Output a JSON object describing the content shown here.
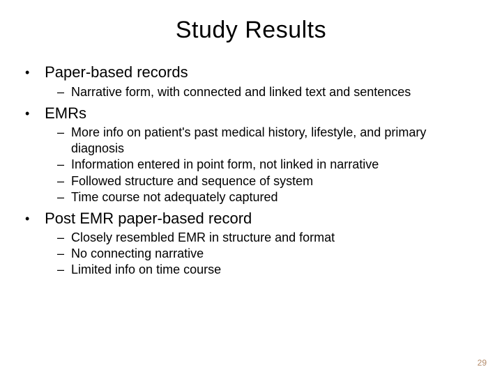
{
  "title": "Study Results",
  "pagenum": "29",
  "sections": [
    {
      "heading": "Paper-based records",
      "items": [
        "Narrative form, with connected and linked text and sentences"
      ]
    },
    {
      "heading": "EMRs",
      "items": [
        "More info on patient's past medical history, lifestyle, and primary diagnosis",
        "Information entered in point form, not linked in narrative",
        "Followed structure and sequence of system",
        "Time course not adequately captured"
      ]
    },
    {
      "heading": "Post EMR paper-based record",
      "items": [
        "Closely resembled EMR in structure and format",
        "No connecting narrative",
        "Limited info on time course"
      ]
    }
  ]
}
